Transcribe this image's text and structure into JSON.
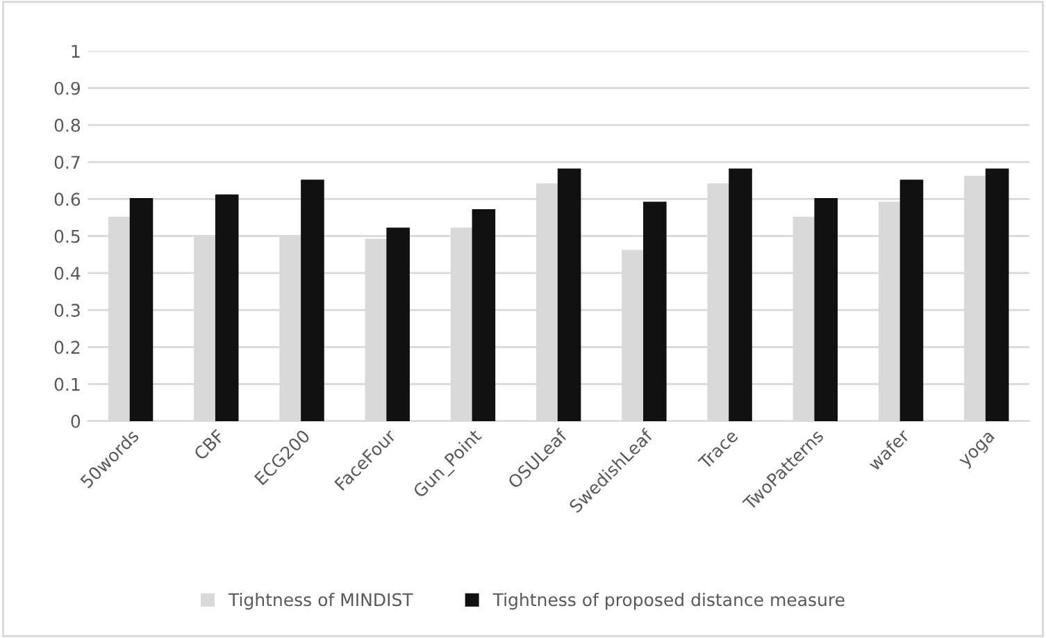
{
  "chart_data": {
    "type": "bar",
    "categories": [
      "50words",
      "CBF",
      "ECG200",
      "FaceFour",
      "Gun_Point",
      "OSULeaf",
      "SwedishLeaf",
      "Trace",
      "TwoPatterns",
      "wafer",
      "yoga"
    ],
    "series": [
      {
        "name": "Tightness of MINDIST",
        "color": "#d9d9d9",
        "values": [
          0.55,
          0.5,
          0.5,
          0.49,
          0.52,
          0.64,
          0.46,
          0.64,
          0.55,
          0.59,
          0.66
        ]
      },
      {
        "name": "Tightness of proposed distance measure",
        "color": "#111111",
        "values": [
          0.6,
          0.61,
          0.65,
          0.52,
          0.57,
          0.68,
          0.59,
          0.68,
          0.6,
          0.65,
          0.68
        ]
      }
    ],
    "ylim": [
      0,
      1
    ],
    "yticks": [
      0,
      0.1,
      0.2,
      0.3,
      0.4,
      0.5,
      0.6,
      0.7,
      0.8,
      0.9,
      1
    ],
    "grid": "y",
    "legend": "bottom"
  }
}
